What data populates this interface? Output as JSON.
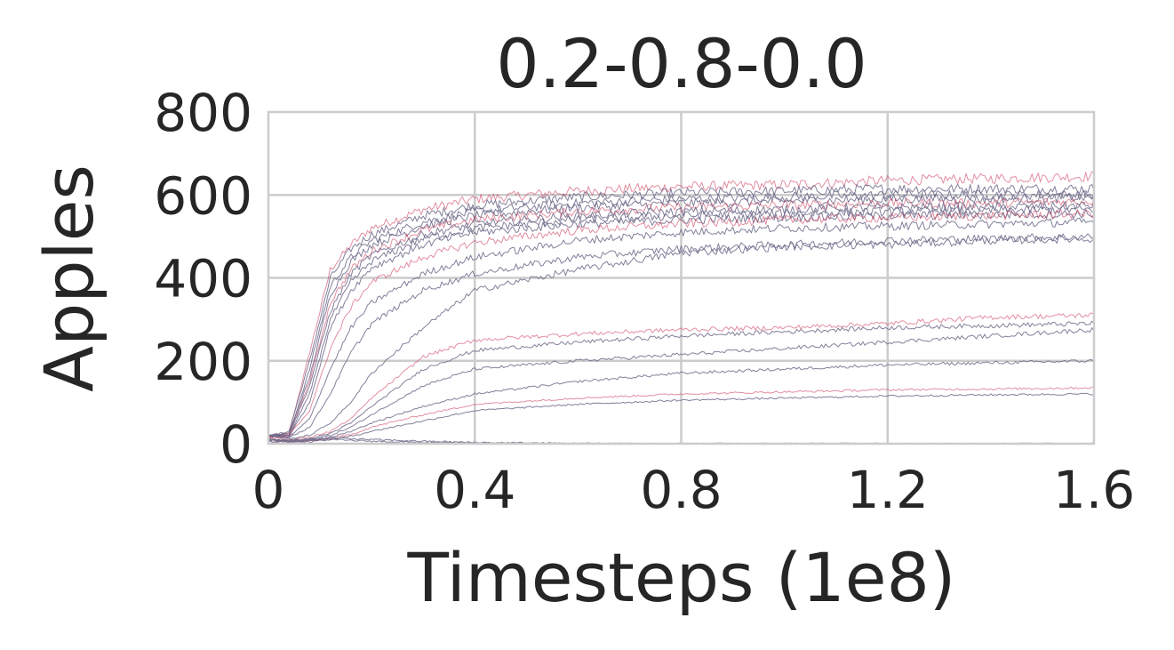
{
  "chart_data": {
    "type": "line",
    "title": "0.2-0.8-0.0",
    "xlabel": "Timesteps (1e8)",
    "ylabel": "Apples",
    "xlim": [
      0,
      1.6
    ],
    "ylim": [
      0,
      800
    ],
    "xticks": [
      "0",
      "0.4",
      "0.8",
      "1.2",
      "1.6"
    ],
    "yticks": [
      "0",
      "200",
      "400",
      "600",
      "800"
    ],
    "xtick_values": [
      0,
      0.4,
      0.8,
      1.2,
      1.6
    ],
    "ytick_values": [
      0,
      200,
      400,
      600,
      800
    ],
    "grid": true,
    "legend": "none",
    "colors": {
      "run": "#6e6a8a",
      "mean": "#cc3355"
    },
    "series": [
      {
        "x": [
          0,
          0.04,
          0.08,
          0.12,
          0.16,
          0.2,
          0.3,
          0.4,
          0.6,
          0.8,
          1.0,
          1.2,
          1.4,
          1.6
        ],
        "values": [
          20,
          25,
          220,
          420,
          480,
          520,
          565,
          590,
          610,
          620,
          625,
          635,
          640,
          645
        ]
      },
      {
        "x": [
          0,
          0.04,
          0.08,
          0.12,
          0.16,
          0.2,
          0.3,
          0.4,
          0.6,
          0.8,
          1.0,
          1.2,
          1.4,
          1.6
        ],
        "values": [
          18,
          30,
          200,
          400,
          470,
          505,
          550,
          575,
          595,
          605,
          610,
          615,
          615,
          615
        ]
      },
      {
        "x": [
          0,
          0.04,
          0.08,
          0.12,
          0.16,
          0.2,
          0.3,
          0.4,
          0.6,
          0.8,
          1.0,
          1.2,
          1.4,
          1.6
        ],
        "values": [
          22,
          20,
          180,
          380,
          450,
          490,
          535,
          560,
          580,
          590,
          595,
          600,
          600,
          600
        ]
      },
      {
        "x": [
          0,
          0.04,
          0.08,
          0.12,
          0.16,
          0.2,
          0.3,
          0.4,
          0.6,
          0.8,
          1.0,
          1.2,
          1.4,
          1.6
        ],
        "values": [
          20,
          25,
          160,
          360,
          440,
          480,
          525,
          550,
          570,
          580,
          585,
          590,
          590,
          595
        ]
      },
      {
        "x": [
          0,
          0.04,
          0.08,
          0.12,
          0.16,
          0.2,
          0.3,
          0.4,
          0.6,
          0.8,
          1.0,
          1.2,
          1.4,
          1.6
        ],
        "values": [
          15,
          20,
          150,
          340,
          420,
          465,
          515,
          540,
          560,
          570,
          575,
          580,
          580,
          585
        ]
      },
      {
        "x": [
          0,
          0.04,
          0.08,
          0.12,
          0.16,
          0.2,
          0.3,
          0.4,
          0.6,
          0.8,
          1.0,
          1.2,
          1.4,
          1.6
        ],
        "values": [
          20,
          22,
          140,
          320,
          410,
          455,
          505,
          530,
          550,
          560,
          565,
          570,
          570,
          575
        ]
      },
      {
        "x": [
          0,
          0.04,
          0.08,
          0.12,
          0.16,
          0.2,
          0.3,
          0.4,
          0.6,
          0.8,
          1.0,
          1.2,
          1.4,
          1.6
        ],
        "values": [
          18,
          20,
          120,
          300,
          390,
          440,
          495,
          520,
          540,
          550,
          555,
          560,
          562,
          565
        ]
      },
      {
        "x": [
          0,
          0.04,
          0.08,
          0.12,
          0.16,
          0.2,
          0.3,
          0.4,
          0.6,
          0.8,
          1.0,
          1.2,
          1.4,
          1.6
        ],
        "values": [
          20,
          18,
          100,
          280,
          370,
          425,
          480,
          510,
          530,
          540,
          545,
          550,
          552,
          555
        ]
      },
      {
        "x": [
          0,
          0.04,
          0.08,
          0.12,
          0.16,
          0.2,
          0.3,
          0.4,
          0.6,
          0.8,
          1.0,
          1.2,
          1.4,
          1.6
        ],
        "values": [
          15,
          20,
          80,
          230,
          330,
          390,
          450,
          485,
          515,
          530,
          540,
          545,
          550,
          555
        ]
      },
      {
        "x": [
          0,
          0.04,
          0.08,
          0.12,
          0.16,
          0.2,
          0.3,
          0.4,
          0.6,
          0.8,
          1.0,
          1.2,
          1.4,
          1.6
        ],
        "values": [
          20,
          15,
          60,
          180,
          280,
          340,
          410,
          450,
          490,
          510,
          520,
          525,
          530,
          535
        ]
      },
      {
        "x": [
          0,
          0.04,
          0.08,
          0.12,
          0.16,
          0.2,
          0.3,
          0.4,
          0.6,
          0.8,
          1.0,
          1.2,
          1.4,
          1.6
        ],
        "values": [
          18,
          15,
          40,
          120,
          220,
          290,
          370,
          410,
          450,
          470,
          480,
          490,
          495,
          500
        ]
      },
      {
        "x": [
          0,
          0.04,
          0.08,
          0.12,
          0.16,
          0.2,
          0.3,
          0.4,
          0.6,
          0.8,
          1.0,
          1.2,
          1.4,
          1.6
        ],
        "values": [
          20,
          12,
          20,
          50,
          100,
          170,
          280,
          370,
          420,
          460,
          475,
          480,
          490,
          495
        ]
      },
      {
        "x": [
          0,
          0.04,
          0.08,
          0.12,
          0.16,
          0.2,
          0.3,
          0.4,
          0.6,
          0.8,
          1.0,
          1.2,
          1.4,
          1.6
        ],
        "values": [
          15,
          10,
          15,
          30,
          60,
          110,
          210,
          250,
          265,
          275,
          280,
          290,
          305,
          310
        ]
      },
      {
        "x": [
          0,
          0.04,
          0.08,
          0.12,
          0.16,
          0.2,
          0.3,
          0.4,
          0.6,
          0.8,
          1.0,
          1.2,
          1.4,
          1.6
        ],
        "values": [
          12,
          8,
          12,
          25,
          50,
          90,
          180,
          225,
          245,
          260,
          270,
          280,
          285,
          290
        ]
      },
      {
        "x": [
          0,
          0.04,
          0.08,
          0.12,
          0.16,
          0.2,
          0.3,
          0.4,
          0.6,
          0.8,
          1.0,
          1.2,
          1.4,
          1.6
        ],
        "values": [
          10,
          6,
          10,
          20,
          40,
          70,
          140,
          180,
          200,
          215,
          230,
          245,
          260,
          275
        ]
      },
      {
        "x": [
          0,
          0.04,
          0.08,
          0.12,
          0.16,
          0.2,
          0.3,
          0.4,
          0.6,
          0.8,
          1.0,
          1.2,
          1.4,
          1.6
        ],
        "values": [
          8,
          5,
          8,
          15,
          30,
          50,
          90,
          120,
          150,
          170,
          180,
          190,
          195,
          200
        ]
      },
      {
        "x": [
          0,
          0.04,
          0.08,
          0.12,
          0.16,
          0.2,
          0.3,
          0.4,
          0.6,
          0.8,
          1.0,
          1.2,
          1.4,
          1.6
        ],
        "values": [
          6,
          4,
          6,
          12,
          22,
          40,
          70,
          95,
          110,
          120,
          125,
          130,
          132,
          135
        ]
      },
      {
        "x": [
          0,
          0.04,
          0.08,
          0.12,
          0.16,
          0.2,
          0.3,
          0.4,
          0.6,
          0.8,
          1.0,
          1.2,
          1.4,
          1.6
        ],
        "values": [
          5,
          4,
          5,
          10,
          18,
          30,
          55,
          80,
          95,
          105,
          110,
          115,
          118,
          120
        ]
      },
      {
        "x": [
          0,
          0.04,
          0.08,
          0.12,
          0.16,
          0.2,
          0.3,
          0.4,
          0.6,
          0.8,
          1.0,
          1.2,
          1.4,
          1.6
        ],
        "values": [
          10,
          8,
          12,
          14,
          12,
          10,
          6,
          3,
          1,
          0,
          0,
          0,
          0,
          0
        ]
      },
      {
        "x": [
          0,
          0.04,
          0.08,
          0.12,
          0.16,
          0.2,
          0.3,
          0.4,
          0.6,
          0.8,
          1.0,
          1.2,
          1.4,
          1.6
        ],
        "values": [
          8,
          6,
          8,
          10,
          8,
          6,
          3,
          1,
          0,
          0,
          0,
          0,
          0,
          0
        ]
      }
    ]
  }
}
